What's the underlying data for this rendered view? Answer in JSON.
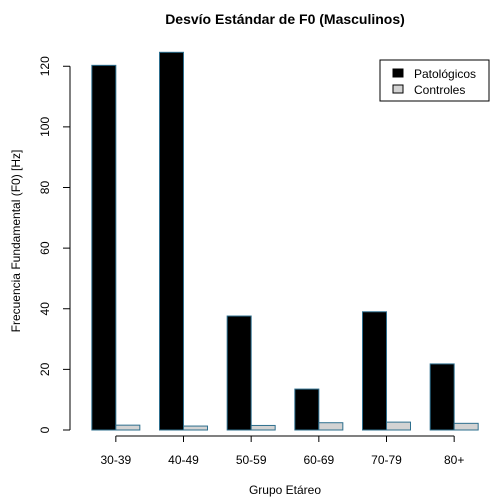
{
  "chart_data": {
    "type": "bar",
    "title": "Desvío Estándar de F0 (Masculinos)",
    "xlabel": "Grupo Etáreo",
    "ylabel": "Frecuencia Fundamental (F0) [Hz]",
    "categories": [
      "30-39",
      "40-49",
      "50-59",
      "60-69",
      "70-79",
      "80+"
    ],
    "series": [
      {
        "name": "Patológicos",
        "values": [
          120.3,
          124.6,
          37.6,
          13.5,
          39.0,
          21.8
        ],
        "color": "#000000"
      },
      {
        "name": "Controles",
        "values": [
          1.6,
          1.3,
          1.5,
          2.4,
          2.6,
          2.2
        ],
        "color": "#d3d3d3"
      }
    ],
    "ylim": [
      0,
      128
    ],
    "yticks": [
      0,
      20,
      40,
      60,
      80,
      100,
      120
    ],
    "grid": false,
    "legend_position": "top-right",
    "bar_stroke": "#2e6f8e"
  }
}
